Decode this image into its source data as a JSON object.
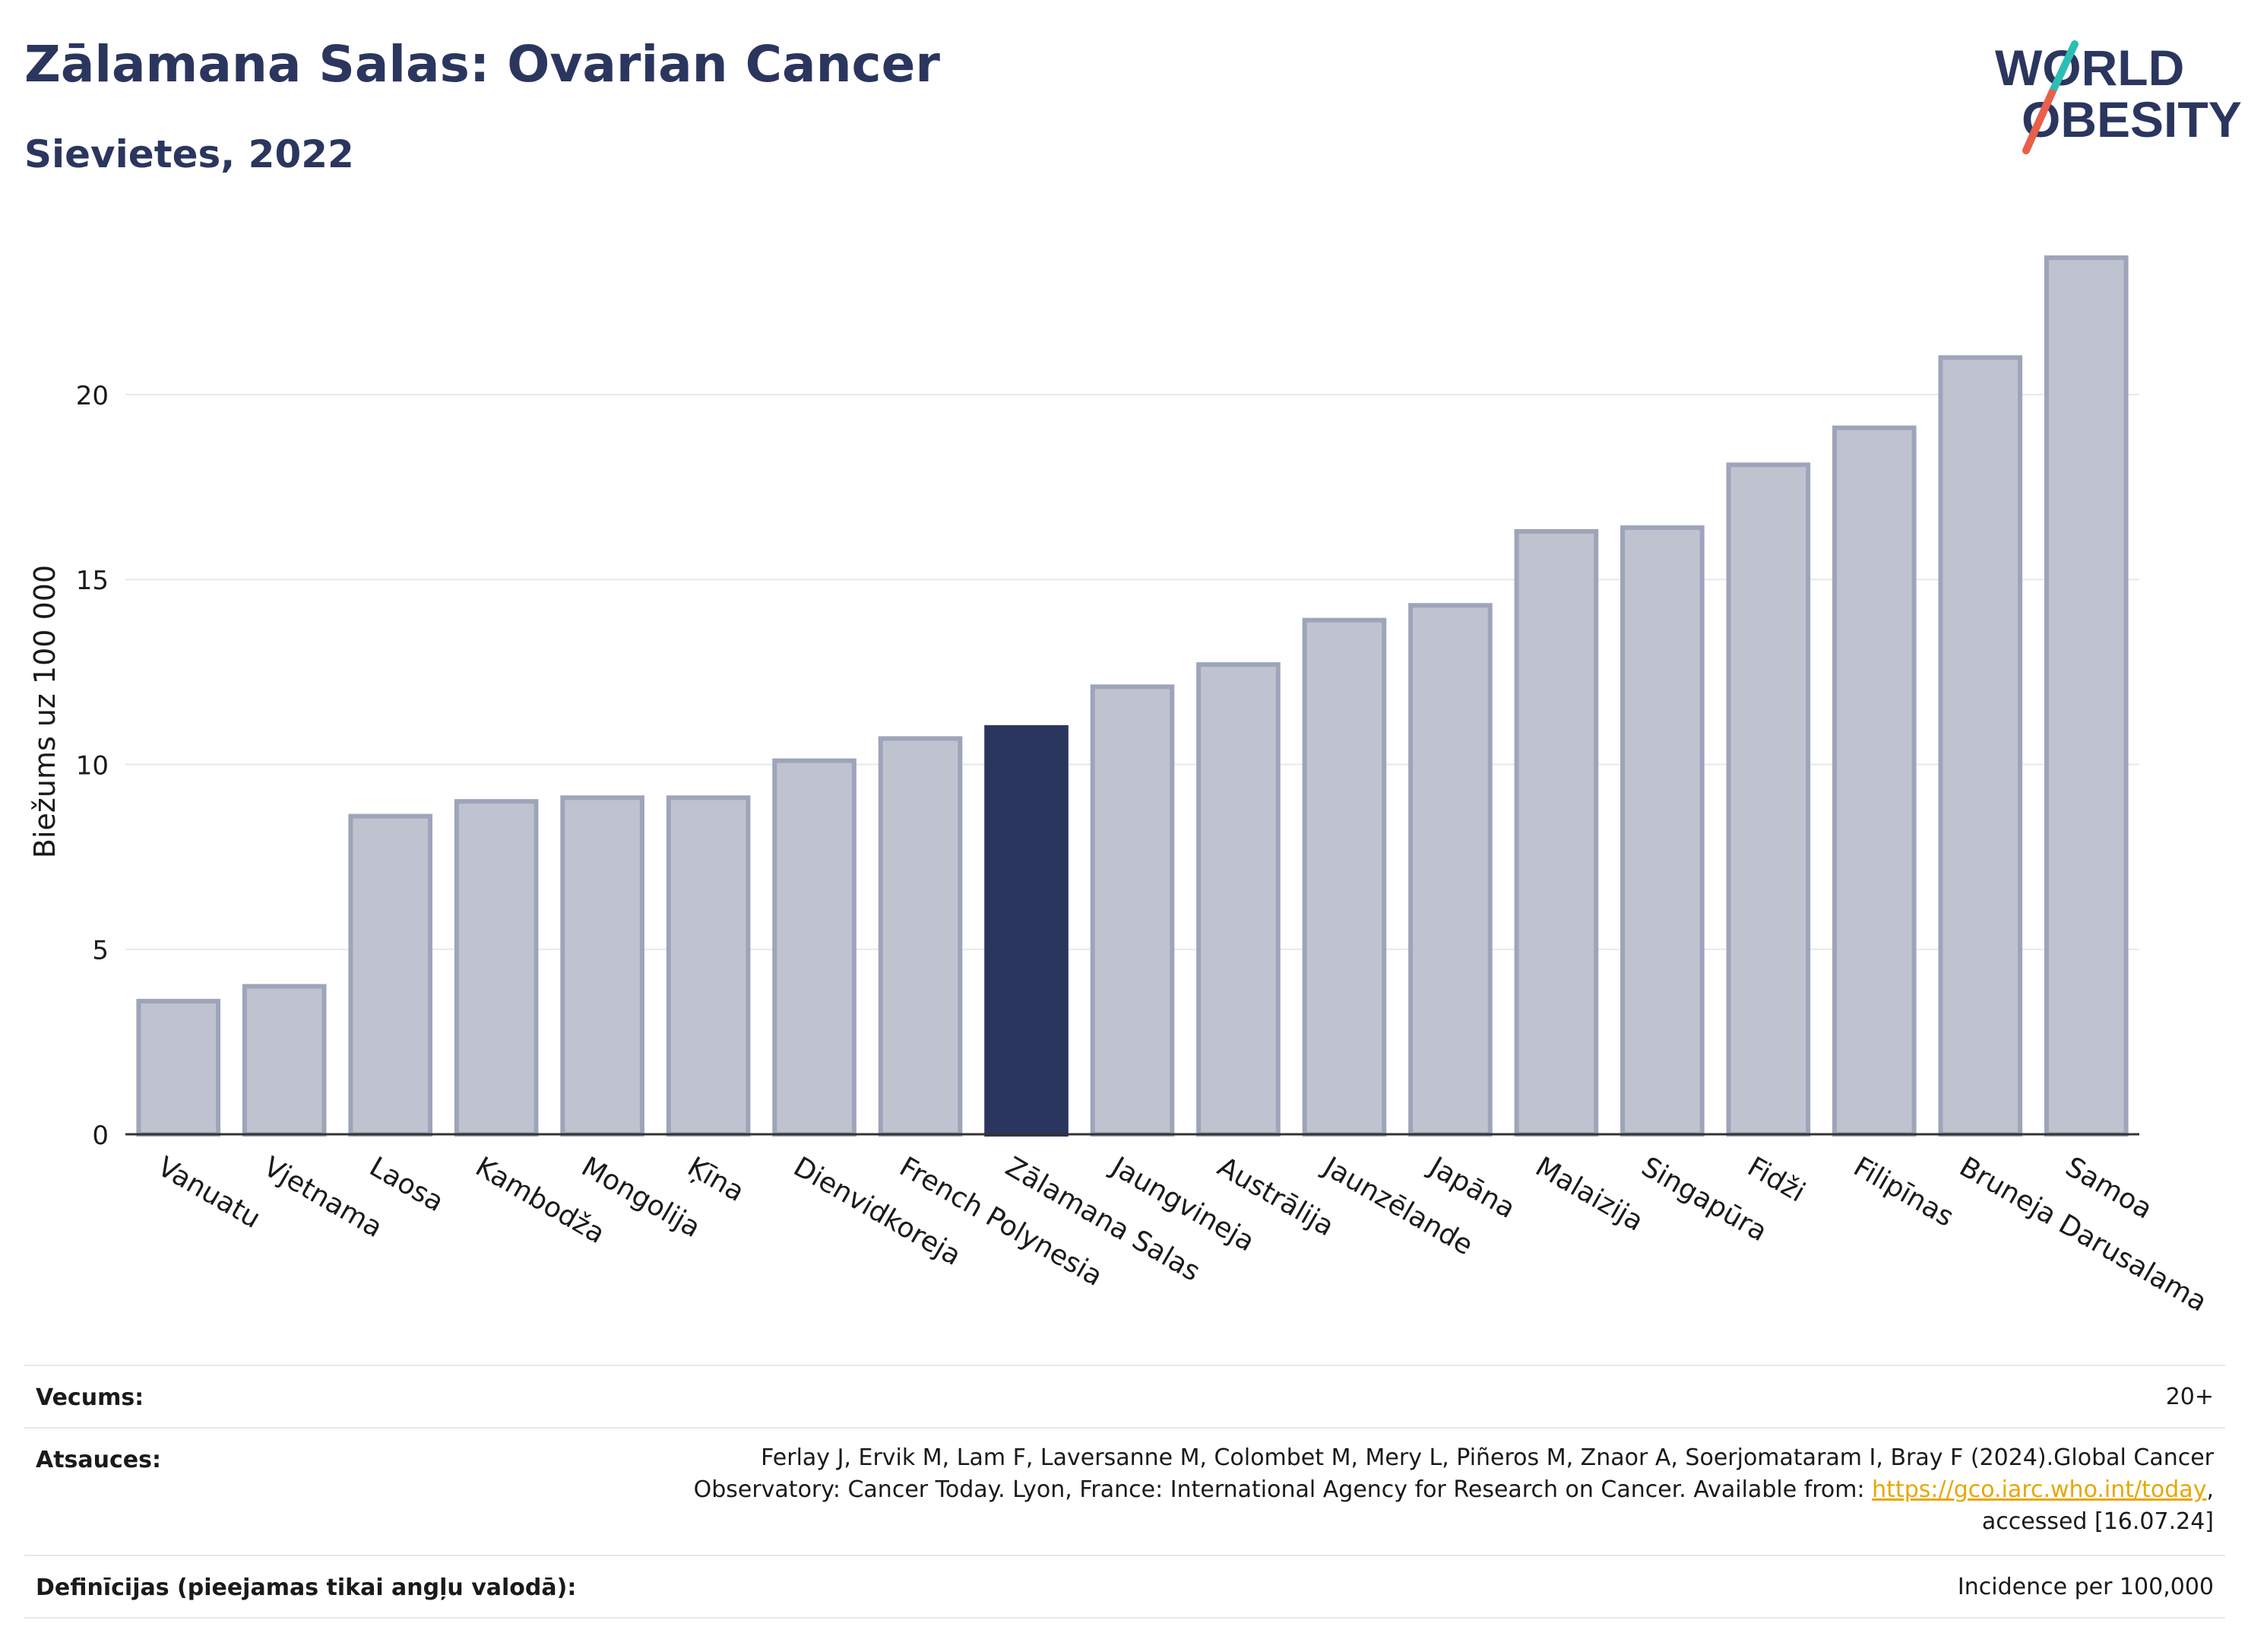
{
  "header": {
    "title": "Zālamana Salas: Ovarian Cancer",
    "subtitle": "Sievietes, 2022"
  },
  "logo": {
    "line1": "WORLD",
    "line2": "OBESITY",
    "accent_teal": "#2bbfb3",
    "accent_red": "#e8604c",
    "text_color": "#2b365f"
  },
  "chart_data": {
    "type": "bar",
    "ylabel": "Biežums uz 100 000",
    "ylim": [
      0,
      24.5
    ],
    "yticks": [
      0,
      5,
      10,
      15,
      20
    ],
    "grid": true,
    "highlight": "Zālamana Salas",
    "colors": {
      "bar": "#bfc3d0",
      "bar_edge": "#9ea4ba",
      "highlight": "#2b365f"
    },
    "categories": [
      "Vanuatu",
      "Vjetnama",
      "Laosa",
      "Kambodža",
      "Mongolija",
      "Ķīna",
      "Dienvidkoreja",
      "French Polynesia",
      "Zālamana Salas",
      "Jaungvineja",
      "Austrālija",
      "Jaunzēlande",
      "Japāna",
      "Malaizija",
      "Singapūra",
      "Fidži",
      "Filipīnas",
      "Bruneja Darusalama",
      "Samoa"
    ],
    "values": [
      3.6,
      4.0,
      8.6,
      9.0,
      9.1,
      9.1,
      10.1,
      10.7,
      11.0,
      12.1,
      12.7,
      13.9,
      14.3,
      16.3,
      16.4,
      18.1,
      19.1,
      21.0,
      23.7
    ]
  },
  "footer": {
    "age_label": "Vecums:",
    "age_value": "20+",
    "refs_label": "Atsauces:",
    "refs_line1": "Ferlay J, Ervik M, Lam F, Laversanne M, Colombet M, Mery L, Piñeros M, Znaor A, Soerjomataram I, Bray F (2024).Global Cancer",
    "refs_line2_pre": "Observatory: Cancer Today. Lyon, France: International Agency for Research on Cancer. Available from: ",
    "refs_link": "https://gco.iarc.who.int/today",
    "refs_line2_post": ",",
    "refs_line3": "accessed [16.07.24]",
    "def_label": "Definīcijas (pieejamas tikai angļu valodā):",
    "def_value": "Incidence per 100,000"
  }
}
